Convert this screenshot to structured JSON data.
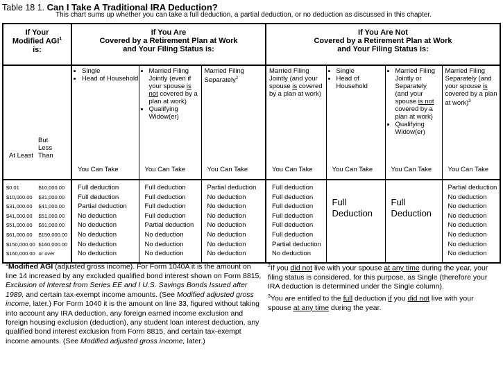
{
  "title": {
    "prefix": "Table 18 1.",
    "bold": "Can I Take A Traditional IRA Deduction?"
  },
  "subtitle": "This chart sums up whether you can take a full deduction, a partial deduction, or no deduction as discussed in this chapter.",
  "headers": {
    "agi": [
      "If Your",
      "Modified AGI",
      "1",
      "is:"
    ],
    "covered": [
      "If You Are",
      "Covered by a Retirement Plan at Work",
      "and Your Filing Status is:"
    ],
    "not_covered": [
      "If You Are Not",
      "Covered by a Retirement Plan at Work",
      "and Your Filing Status is:"
    ]
  },
  "agi_labels": {
    "at_least": "At Least",
    "less_than": "But Less Than"
  },
  "you_can_take": "You Can Take",
  "statuses": {
    "c1": [
      "Single",
      "Head of Household"
    ],
    "c2": [
      "Married Filing Jointly (even if your spouse ",
      "is not",
      " covered by a plan at work)",
      "Qualifying Widow(er)"
    ],
    "c3": [
      "Married Filing Separately",
      "2"
    ],
    "n1": [
      "Married Filing Jointly (and your spouse ",
      "is",
      " covered by a plan at work)"
    ],
    "n2": [
      "Single",
      "Head of Household"
    ],
    "n3": [
      "Married Filing Jointly or Separately (and your spouse ",
      "is not",
      " covered by a plan at work)",
      "Qualifying Widow(er)"
    ],
    "n4": [
      "Married Filing Separately (and your spouse ",
      "is",
      " covered by a plan at work)",
      "3"
    ]
  },
  "ranges": [
    [
      "$0.01",
      "$10,000.00"
    ],
    [
      "$10,000.00",
      "$31,000.00"
    ],
    [
      "$31,000.00",
      "$41,000.00"
    ],
    [
      "$41,000.00",
      "$51,000.00"
    ],
    [
      "$51,000.00",
      "$61,000.00"
    ],
    [
      "$61,000.00",
      "$150,000.00"
    ],
    [
      "$150,000.00",
      "$160,000.00"
    ],
    [
      "$160,000.00",
      "or over"
    ]
  ],
  "columns": {
    "c1": [
      "Full deduction",
      "Full deduction",
      "Partial deduction",
      "No deduction",
      "No deduction",
      "No deduction",
      "No deduction",
      "No deduction"
    ],
    "c2": [
      "Full deduction",
      "Full deduction",
      "Full deduction",
      "Full deduction",
      "Partial deduction",
      "No deduction",
      "No deduction",
      "No deduction"
    ],
    "c3": [
      "Partial deduction",
      "No deduction",
      "No deduction",
      "No deduction",
      "No deduction",
      "No deduction",
      "No deduction",
      "No deduction"
    ],
    "n1": [
      "Full deduction",
      "Full deduction",
      "Full deduction",
      "Full deduction",
      "Full deduction",
      "Full deduction",
      "Partial deduction",
      "No deduction"
    ],
    "n2": "Full Deduction",
    "n3": "Full Deduction",
    "n4": [
      "Partial deduction",
      "No deduction",
      "No deduction",
      "No deduction",
      "No deduction",
      "No deduction",
      "No deduction",
      "No deduction"
    ]
  },
  "footnotes": {
    "f1": {
      "mark": "1",
      "bold": "Modified AGI",
      "t1": " (adjusted gross income). For Form 1040A it is the amount on line 14 increased by any excluded qualified bond interest shown on Form 8815, ",
      "i1": "Exclusion of Interest from Series EE and I U.S. Savings Bonds Issued after 1989,",
      "t2": " and certain tax-exempt income amounts. (See ",
      "i2": "Modified adjusted gross income,",
      "t3": " later.) For Form 1040 it is the amount on line 33, figured without taking into account any IRA deduction, any foreign earned income exclusion and foreign housing exclusion (deduction), any student loan interest deduction, any qualified bond interest exclusion from Form 8815, and certain tax-exempt income amounts. (See ",
      "i3": "Modified adjusted gross income,",
      "t4": " later.)"
    },
    "f2": {
      "mark": "2",
      "t1": "If you ",
      "u1": "did not",
      "t2": " live with your spouse ",
      "u2": "at any time",
      "t3": " during the year, your filing status is considered, for this purpose, as Single (therefore your IRA deduction is determined under the  Single column)."
    },
    "f3": {
      "mark": "3",
      "t1": "You are entitled to the ",
      "u1": "full",
      "t2": " deduction ",
      "u2": "if",
      "t3": " you ",
      "u3": "did not",
      "t4": " live with your spouse ",
      "u4": "at any time",
      "t5": " during the year."
    }
  }
}
